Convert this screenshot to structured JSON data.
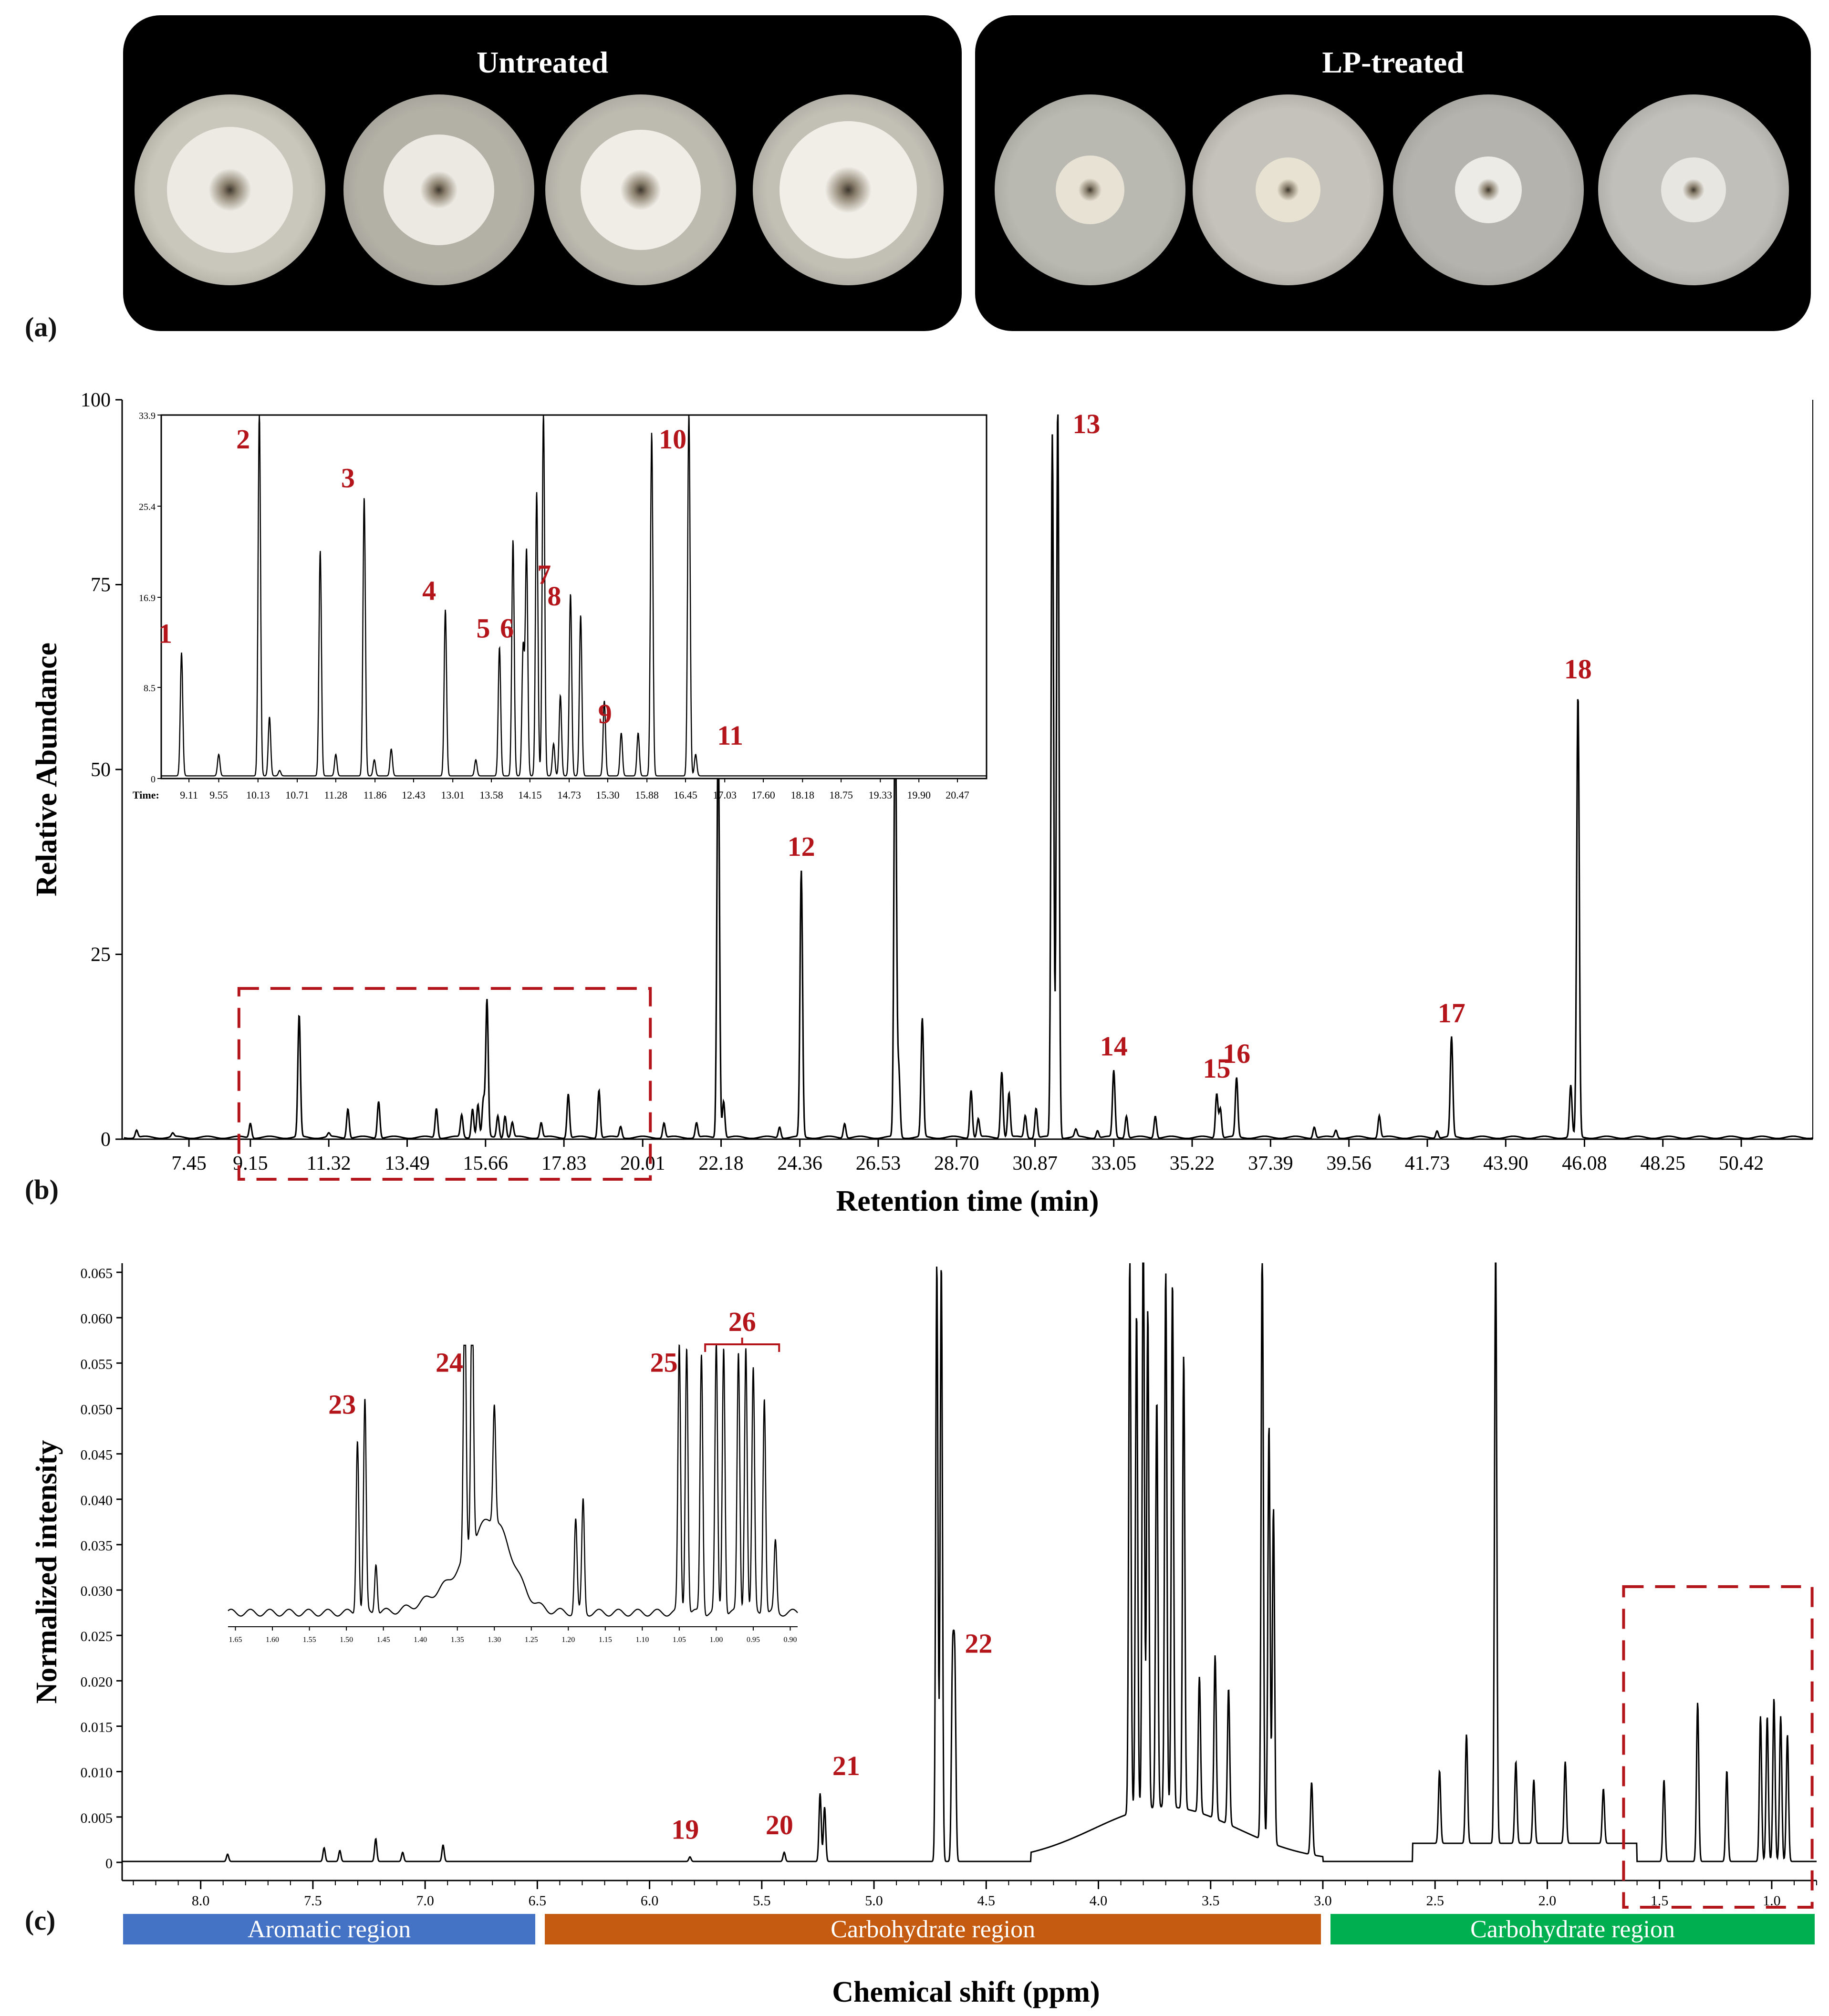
{
  "panel_a": {
    "label": "(a)",
    "groups": [
      {
        "title": "Untreated",
        "dishes": [
          {
            "bg": "#c9c6bb",
            "colony": "#eceae3",
            "ratio": 0.66
          },
          {
            "bg": "#b3b0a6",
            "colony": "#ece9e2",
            "ratio": 0.58
          },
          {
            "bg": "#bdbab0",
            "colony": "#f0ede6",
            "ratio": 0.63
          },
          {
            "bg": "#c2bfb5",
            "colony": "#f1eee7",
            "ratio": 0.72
          }
        ]
      },
      {
        "title": "LP-treated",
        "dishes": [
          {
            "bg": "#b9b9b2",
            "colony": "#e7e2d4",
            "ratio": 0.36
          },
          {
            "bg": "#c4c2bb",
            "colony": "#e8e2d2",
            "ratio": 0.34
          },
          {
            "bg": "#b4b3ad",
            "colony": "#ecebe6",
            "ratio": 0.35
          },
          {
            "bg": "#c0bfba",
            "colony": "#e8e6e1",
            "ratio": 0.34
          }
        ]
      }
    ]
  },
  "chart_data": [
    {
      "type": "line",
      "panel_label": "(b)",
      "xlabel": "Retention time (min)",
      "ylabel": "Relative Abundance",
      "xlim": [
        5.6,
        52.4
      ],
      "ylim": [
        0,
        100
      ],
      "x_ticks": [
        "7.45",
        "9.15",
        "11.32",
        "13.49",
        "15.66",
        "17.83",
        "20.01",
        "22.18",
        "24.36",
        "26.53",
        "28.70",
        "30.87",
        "33.05",
        "35.22",
        "37.39",
        "39.56",
        "41.73",
        "43.90",
        "46.08",
        "48.25",
        "50.42"
      ],
      "y_ticks": [
        "0",
        "25",
        "50",
        "75",
        "100"
      ],
      "peaks": [
        [
          6.0,
          1.0
        ],
        [
          7.0,
          0.5
        ],
        [
          9.15,
          2
        ],
        [
          10.5,
          16.5
        ],
        [
          11.32,
          0.5
        ],
        [
          11.85,
          4
        ],
        [
          12.7,
          5
        ],
        [
          14.3,
          4
        ],
        [
          15.0,
          3
        ],
        [
          15.3,
          4
        ],
        [
          15.45,
          4.5
        ],
        [
          15.6,
          5
        ],
        [
          15.7,
          18.5
        ],
        [
          16.0,
          3
        ],
        [
          16.2,
          3
        ],
        [
          16.4,
          2
        ],
        [
          17.2,
          2
        ],
        [
          17.95,
          6
        ],
        [
          18.8,
          6.5
        ],
        [
          19.4,
          1.5
        ],
        [
          20.6,
          2
        ],
        [
          21.5,
          2
        ],
        [
          22.1,
          56
        ],
        [
          22.25,
          5
        ],
        [
          23.8,
          1.5
        ],
        [
          24.4,
          36
        ],
        [
          25.6,
          2
        ],
        [
          27.0,
          59
        ],
        [
          27.1,
          9
        ],
        [
          27.75,
          16
        ],
        [
          29.1,
          6.5
        ],
        [
          29.3,
          2.5
        ],
        [
          29.95,
          9
        ],
        [
          30.15,
          6
        ],
        [
          30.6,
          3
        ],
        [
          30.9,
          4
        ],
        [
          31.35,
          95
        ],
        [
          31.5,
          99
        ],
        [
          32.0,
          1
        ],
        [
          32.6,
          1
        ],
        [
          33.05,
          9
        ],
        [
          33.4,
          3
        ],
        [
          34.2,
          3
        ],
        [
          35.9,
          6
        ],
        [
          36.0,
          4
        ],
        [
          36.45,
          8
        ],
        [
          38.6,
          1.5
        ],
        [
          39.2,
          1
        ],
        [
          40.4,
          3
        ],
        [
          42.0,
          1
        ],
        [
          42.4,
          13.5
        ],
        [
          45.9,
          60
        ],
        [
          45.7,
          7
        ]
      ],
      "peak_labels": [
        {
          "label": "12",
          "x": 24.4,
          "y": 36
        },
        {
          "label": "13",
          "x": 31.5,
          "y": 96
        },
        {
          "label": "14",
          "x": 33.05,
          "y": 9
        },
        {
          "label": "15",
          "x": 35.9,
          "y": 6
        },
        {
          "label": "16",
          "x": 36.45,
          "y": 8
        },
        {
          "label": "17",
          "x": 42.4,
          "y": 13.5
        },
        {
          "label": "18",
          "x": 45.9,
          "y": 60
        }
      ],
      "inset": {
        "time_label": "Time:",
        "xlim": [
          8.7,
          20.9
        ],
        "ylim": [
          0,
          33.9
        ],
        "x_ticks": [
          "9.11",
          "9.55",
          "10.13",
          "10.71",
          "11.28",
          "11.86",
          "12.43",
          "13.01",
          "13.58",
          "14.15",
          "14.73",
          "15.30",
          "15.88",
          "16.45",
          "17.03",
          "17.60",
          "18.18",
          "18.75",
          "19.33",
          "19.90",
          "20.47"
        ],
        "y_ticks": [
          "0",
          "8.5",
          "16.9",
          "25.4",
          "33.9"
        ],
        "peaks": [
          [
            9.0,
            11.5
          ],
          [
            9.55,
            2
          ],
          [
            10.15,
            34
          ],
          [
            10.3,
            5.5
          ],
          [
            10.45,
            0.5
          ],
          [
            11.05,
            21
          ],
          [
            11.28,
            2
          ],
          [
            11.7,
            26
          ],
          [
            11.85,
            1.5
          ],
          [
            12.1,
            2.5
          ],
          [
            12.9,
            15.5
          ],
          [
            13.35,
            1.5
          ],
          [
            13.7,
            12
          ],
          [
            13.9,
            22
          ],
          [
            14.05,
            12
          ],
          [
            14.1,
            21
          ],
          [
            14.25,
            26.5
          ],
          [
            14.35,
            34
          ],
          [
            14.5,
            3
          ],
          [
            14.6,
            7.5
          ],
          [
            14.75,
            17
          ],
          [
            14.9,
            15
          ],
          [
            15.25,
            7
          ],
          [
            15.5,
            4
          ],
          [
            15.75,
            4
          ],
          [
            15.95,
            32
          ],
          [
            16.5,
            33.9
          ],
          [
            16.6,
            2
          ]
        ],
        "peak_labels": [
          {
            "label": "1",
            "x": 9.0,
            "y": 11.5
          },
          {
            "label": "2",
            "x": 10.15,
            "y": 33.9
          },
          {
            "label": "3",
            "x": 11.7,
            "y": 26
          },
          {
            "label": "4",
            "x": 12.9,
            "y": 15.5
          },
          {
            "label": "5",
            "x": 13.7,
            "y": 12
          },
          {
            "label": "6",
            "x": 14.05,
            "y": 12
          },
          {
            "label": "7",
            "x": 14.6,
            "y": 17
          },
          {
            "label": "8",
            "x": 14.75,
            "y": 15
          },
          {
            "label": "9",
            "x": 15.5,
            "y": 4
          },
          {
            "label": "10",
            "x": 16.5,
            "y": 33.9
          },
          {
            "label": "11",
            "x": 17.35,
            "y": 2
          }
        ]
      },
      "highlight_x": [
        9.15,
        20.01
      ]
    },
    {
      "type": "line",
      "panel_label": "(c)",
      "xlabel": "Chemical shift (ppm)",
      "ylabel": "Normalized intensity",
      "xlim": [
        8.35,
        0.8
      ],
      "ylim": [
        -0.002,
        0.066
      ],
      "x_ticks": [
        "8.0",
        "7.5",
        "7.0",
        "6.5",
        "6.0",
        "5.5",
        "5.0",
        "4.5",
        "4.0",
        "3.5",
        "3.0",
        "2.5",
        "2.0",
        "1.5",
        "1.0"
      ],
      "y_ticks": [
        "0",
        "0.005",
        "0.010",
        "0.015",
        "0.020",
        "0.025",
        "0.030",
        "0.035",
        "0.040",
        "0.045",
        "0.050",
        "0.055",
        "0.060",
        "0.065"
      ],
      "peaks": [
        [
          7.88,
          0.0008
        ],
        [
          7.45,
          0.0015
        ],
        [
          7.38,
          0.0012
        ],
        [
          7.22,
          0.0025
        ],
        [
          7.1,
          0.001
        ],
        [
          6.92,
          0.0018
        ],
        [
          5.82,
          0.0005
        ],
        [
          5.4,
          0.001
        ],
        [
          5.24,
          0.0075
        ],
        [
          5.22,
          0.006
        ],
        [
          4.72,
          0.066
        ],
        [
          4.7,
          0.066
        ],
        [
          4.65,
          0.021
        ],
        [
          4.64,
          0.021
        ],
        [
          3.86,
          0.061
        ],
        [
          3.83,
          0.055
        ],
        [
          3.8,
          0.066
        ],
        [
          3.78,
          0.055
        ],
        [
          3.74,
          0.045
        ],
        [
          3.7,
          0.059
        ],
        [
          3.67,
          0.058
        ],
        [
          3.62,
          0.05
        ],
        [
          3.55,
          0.015
        ],
        [
          3.48,
          0.018
        ],
        [
          3.42,
          0.015
        ],
        [
          3.27,
          0.066
        ],
        [
          3.24,
          0.046
        ],
        [
          3.22,
          0.037
        ],
        [
          3.05,
          0.008
        ],
        [
          2.48,
          0.008
        ],
        [
          2.36,
          0.012
        ],
        [
          2.23,
          0.066
        ],
        [
          2.14,
          0.009
        ],
        [
          2.06,
          0.007
        ],
        [
          1.92,
          0.009
        ],
        [
          1.75,
          0.006
        ],
        [
          1.48,
          0.009
        ],
        [
          1.33,
          0.0175
        ],
        [
          1.2,
          0.01
        ],
        [
          1.05,
          0.016
        ],
        [
          1.02,
          0.016
        ],
        [
          0.99,
          0.018
        ],
        [
          0.96,
          0.016
        ],
        [
          0.93,
          0.014
        ]
      ],
      "peak_labels": [
        {
          "label": "19",
          "x": 5.82,
          "y": 0.0005
        },
        {
          "label": "20",
          "x": 5.4,
          "y": 0.001
        },
        {
          "label": "21",
          "x": 5.23,
          "y": 0.0075
        },
        {
          "label": "22",
          "x": 4.64,
          "y": 0.021
        }
      ],
      "inset": {
        "xlim": [
          1.66,
          0.89
        ],
        "x_ticks": [
          "1.65",
          "1.60",
          "1.55",
          "1.50",
          "1.45",
          "1.40",
          "1.35",
          "1.30",
          "1.25",
          "1.20",
          "1.15",
          "1.10",
          "1.05",
          "1.00",
          "0.95",
          "0.90"
        ],
        "peaks": [
          [
            1.485,
            0.62
          ],
          [
            1.475,
            0.75
          ],
          [
            1.46,
            0.18
          ],
          [
            1.34,
            0.95
          ],
          [
            1.33,
            0.95
          ],
          [
            1.3,
            0.42
          ],
          [
            1.19,
            0.33
          ],
          [
            1.18,
            0.4
          ],
          [
            1.05,
            0.95
          ],
          [
            1.04,
            0.95
          ],
          [
            1.02,
            0.92
          ],
          [
            1.0,
            0.95
          ],
          [
            0.99,
            0.95
          ],
          [
            0.97,
            0.92
          ],
          [
            0.96,
            0.95
          ],
          [
            0.95,
            0.86
          ],
          [
            0.935,
            0.77
          ],
          [
            0.92,
            0.25
          ]
        ],
        "peak_labels": [
          {
            "label": "23",
            "x": 1.48,
            "y": 0.75
          },
          {
            "label": "24",
            "x": 1.335,
            "y": 0.95
          },
          {
            "label": "25",
            "x": 1.045,
            "y": 0.95
          }
        ],
        "bracket_label": "26"
      },
      "highlight_x": [
        1.66,
        0.82
      ],
      "regions": [
        {
          "name": "Aromatic region",
          "color": "#4472c4",
          "from": 8.35,
          "to": 6.5
        },
        {
          "name": "Carbohydrate region",
          "color": "#c55a11",
          "from": 6.47,
          "to": 3.0
        },
        {
          "name": "Carbohydrate region",
          "color": "#00b050",
          "from": 2.97,
          "to": 0.8
        }
      ]
    }
  ]
}
